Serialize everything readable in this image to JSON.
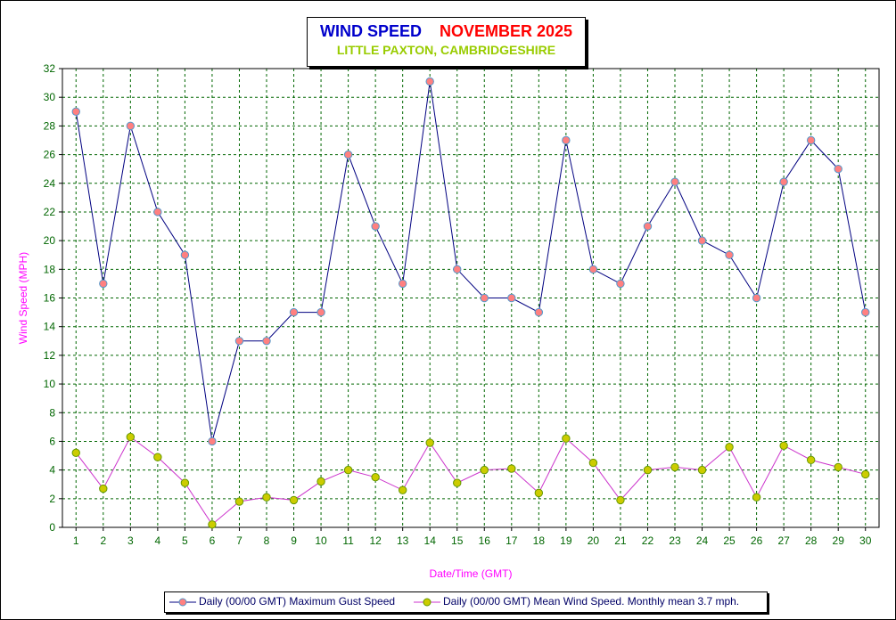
{
  "title": {
    "left": "WIND SPEED",
    "right": "NOVEMBER 2025",
    "subtitle": "LITTLE PAXTON, CAMBRIDGESHIRE"
  },
  "colors": {
    "max_line": "#000080",
    "max_marker": "#ff8080",
    "mean_line": "#cc33cc",
    "mean_marker": "#cccc00",
    "grid": "#006600",
    "tick_labels": "#006600",
    "axis_titles": "#ff00ff"
  },
  "chart_data": {
    "type": "line",
    "xlabel": "Date/Time (GMT)",
    "ylabel": "Wind Speed (MPH)",
    "ylim": [
      0,
      32
    ],
    "yticks": [
      0,
      2,
      4,
      6,
      8,
      10,
      12,
      14,
      16,
      18,
      20,
      22,
      24,
      26,
      28,
      30,
      32
    ],
    "grid": true,
    "legend_position": "bottom",
    "x": [
      1,
      2,
      3,
      4,
      5,
      6,
      7,
      8,
      9,
      10,
      11,
      12,
      13,
      14,
      15,
      16,
      17,
      18,
      19,
      20,
      21,
      22,
      23,
      24,
      25,
      26,
      27,
      28,
      29,
      30
    ],
    "series": [
      {
        "name": "Daily (00/00 GMT) Maximum Gust Speed",
        "values": [
          29,
          17,
          28,
          22,
          19,
          6,
          13,
          13,
          15,
          15,
          26,
          21,
          17,
          31.1,
          18,
          16,
          16,
          15,
          27,
          18,
          17,
          21,
          24.1,
          20,
          19,
          16,
          24.1,
          27,
          25,
          15
        ]
      },
      {
        "name": "Daily (00/00 GMT) Mean Wind Speed. Monthly mean 3.7 mph.",
        "values": [
          5.2,
          2.7,
          6.3,
          4.9,
          3.1,
          0.2,
          1.8,
          2.1,
          1.9,
          3.2,
          4,
          3.5,
          2.6,
          5.9,
          3.1,
          4,
          4.1,
          2.4,
          6.2,
          4.5,
          1.9,
          4,
          4.2,
          4,
          5.6,
          2.1,
          5.7,
          4.7,
          4.2,
          3.7
        ]
      }
    ]
  }
}
